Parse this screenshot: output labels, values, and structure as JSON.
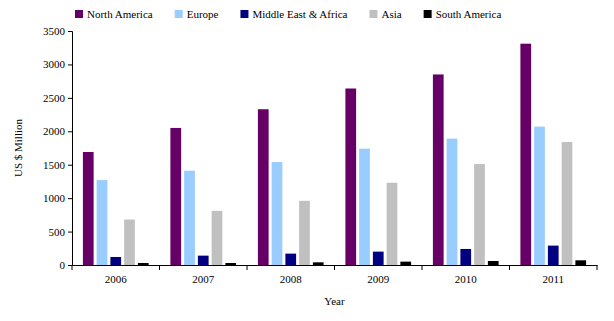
{
  "chart_data": {
    "type": "bar",
    "categories": [
      "2006",
      "2007",
      "2008",
      "2009",
      "2010",
      "2011"
    ],
    "series": [
      {
        "name": "North America",
        "color": "#660066",
        "values": [
          1690,
          2050,
          2330,
          2640,
          2850,
          3310
        ]
      },
      {
        "name": "Europe",
        "color": "#99ccff",
        "values": [
          1270,
          1410,
          1540,
          1740,
          1890,
          2070
        ]
      },
      {
        "name": "Middle East & Africa",
        "color": "#000080",
        "values": [
          120,
          140,
          170,
          200,
          240,
          290
        ]
      },
      {
        "name": "Asia",
        "color": "#c0c0c0",
        "values": [
          680,
          810,
          960,
          1230,
          1510,
          1840
        ]
      },
      {
        "name": "South America",
        "color": "#000000",
        "values": [
          30,
          30,
          40,
          50,
          60,
          70
        ]
      }
    ],
    "x_label": "Year",
    "y_label": "US $ Million",
    "ylim": [
      0,
      3500
    ],
    "yticks": [
      0,
      500,
      1000,
      1500,
      2000,
      2500,
      3000,
      3500
    ],
    "legend": "top",
    "grid": false
  }
}
